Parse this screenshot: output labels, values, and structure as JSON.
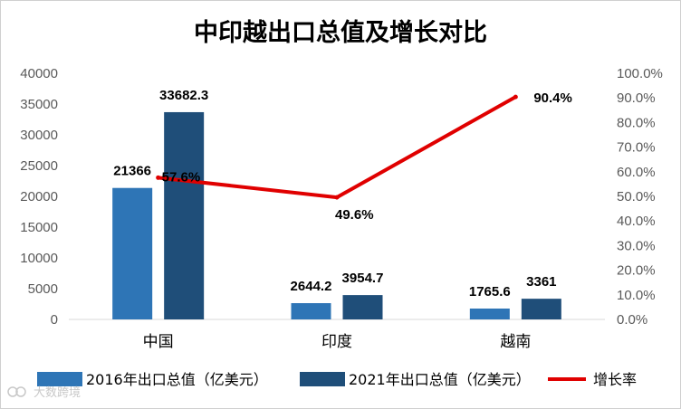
{
  "chart_data": {
    "type": "bar",
    "title": "中印越出口总值及增长对比",
    "categories": [
      "中国",
      "印度",
      "越南"
    ],
    "series": [
      {
        "name": "2016年出口总值（亿美元）",
        "type": "bar",
        "axis": "left",
        "values": [
          21366,
          2644.2,
          1765.6
        ],
        "labels": [
          "21366",
          "2644.2",
          "1765.6"
        ],
        "color": "#2e75b6"
      },
      {
        "name": "2021年出口总值（亿美元）",
        "type": "bar",
        "axis": "left",
        "values": [
          33682.3,
          3954.7,
          3361
        ],
        "labels": [
          "33682.3",
          "3954.7",
          "3361"
        ],
        "color": "#1f4e79"
      },
      {
        "name": "增长率",
        "type": "line",
        "axis": "right",
        "values": [
          57.6,
          49.6,
          90.4
        ],
        "labels": [
          "57.6%",
          "49.6%",
          "90.4%"
        ],
        "color": "#e00000"
      }
    ],
    "y_left": {
      "min": 0,
      "max": 40000,
      "step": 5000,
      "ticks": [
        "0",
        "5000",
        "10000",
        "15000",
        "20000",
        "25000",
        "30000",
        "35000",
        "40000"
      ]
    },
    "y_right": {
      "min": 0,
      "max": 100,
      "step": 10,
      "ticks": [
        "0.0%",
        "10.0%",
        "20.0%",
        "30.0%",
        "40.0%",
        "50.0%",
        "60.0%",
        "70.0%",
        "80.0%",
        "90.0%",
        "100.0%"
      ]
    },
    "grid": false,
    "legend_position": "bottom"
  },
  "watermark": "大数跨境"
}
